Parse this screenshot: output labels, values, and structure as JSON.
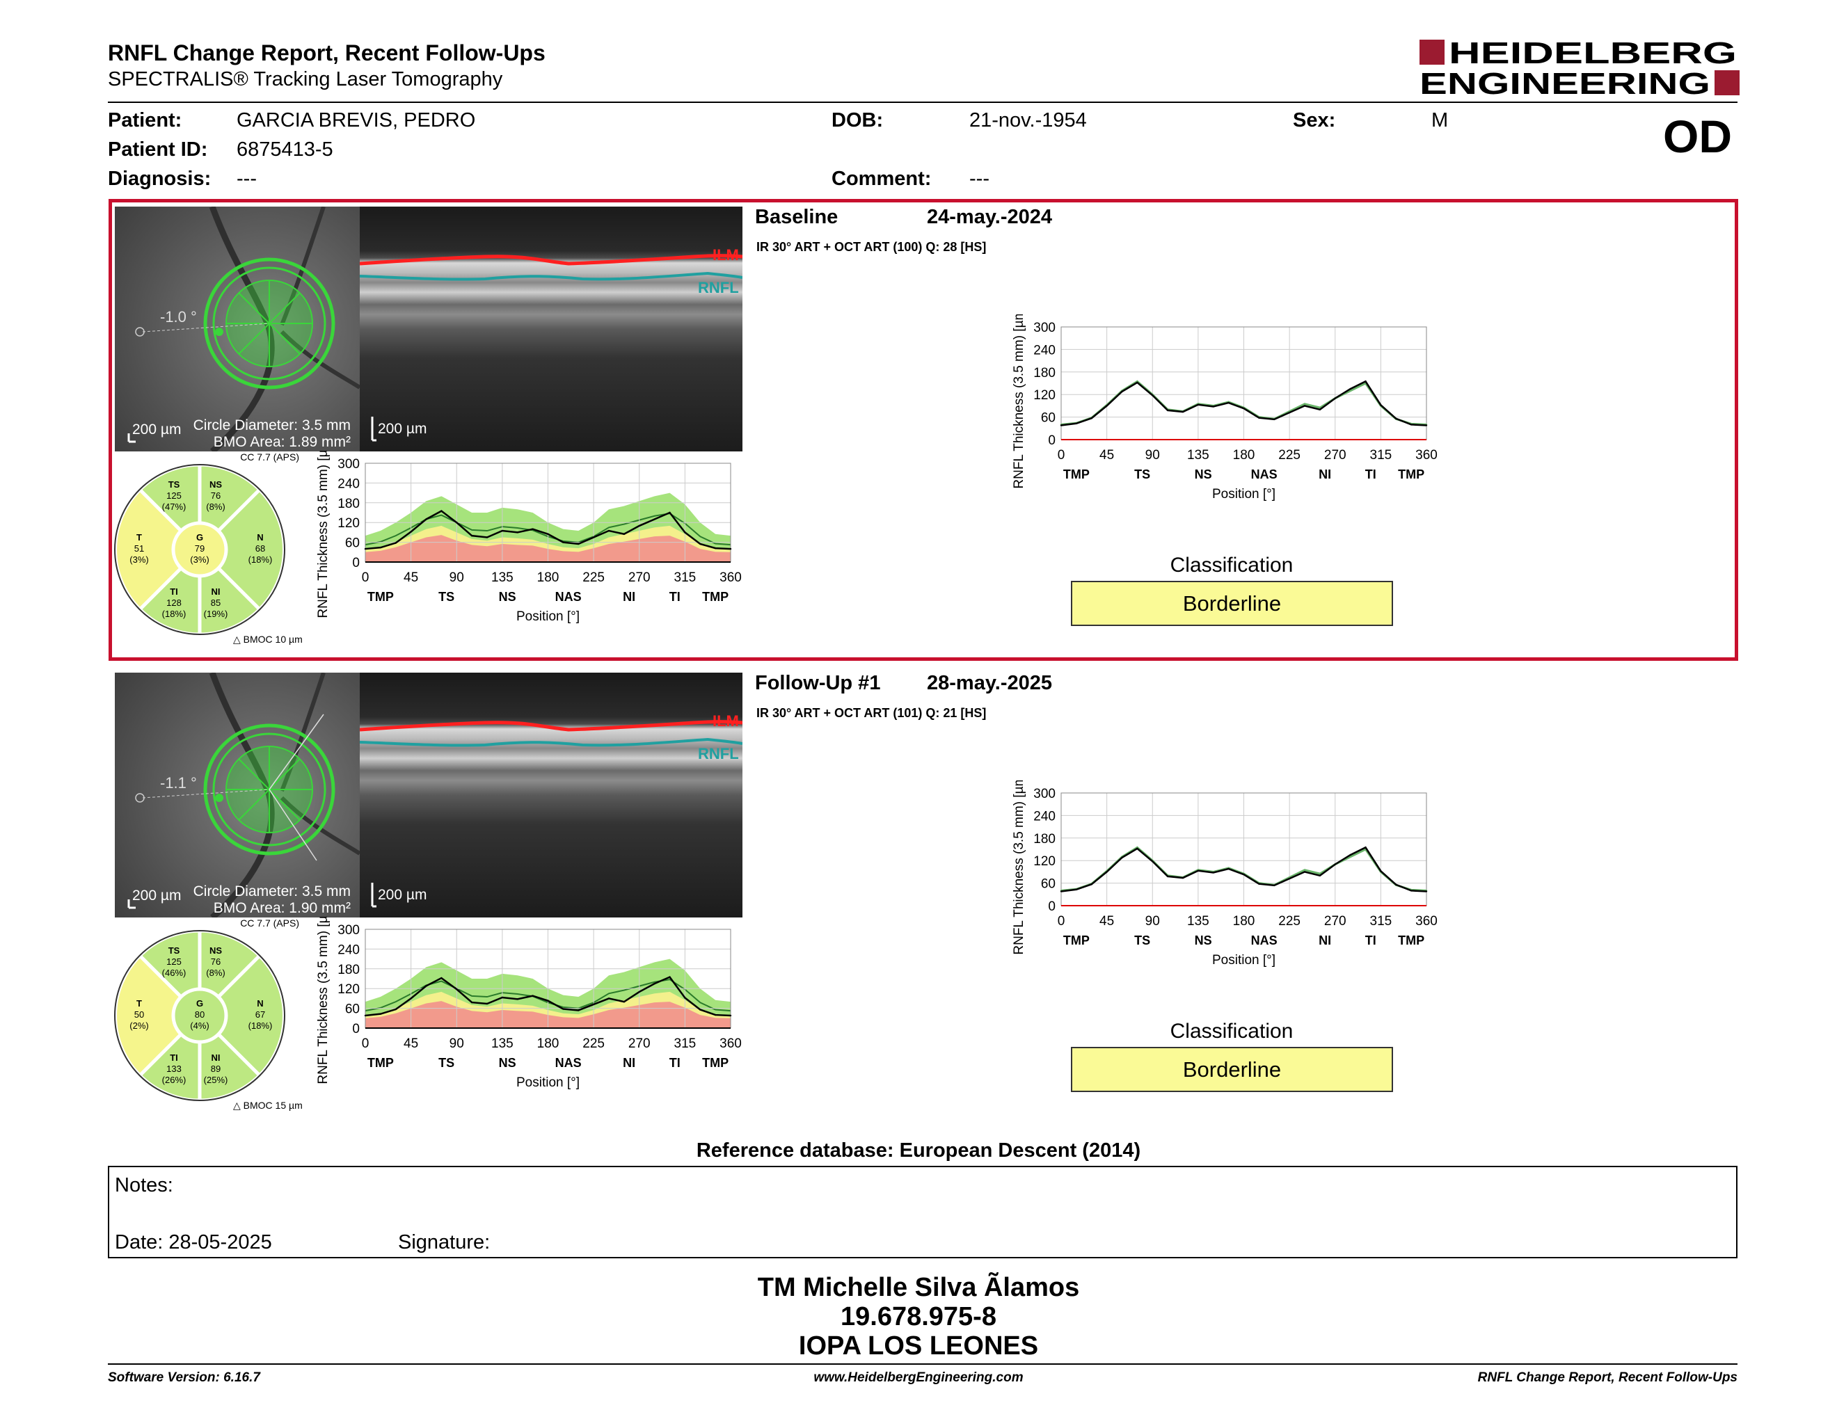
{
  "header": {
    "title": "RNFL Change Report, Recent Follow-Ups",
    "subtitle": "SPECTRALIS® Tracking Laser Tomography",
    "logo_line1": "HEIDELBERG",
    "logo_line2": "ENGINEERING",
    "eye": "OD"
  },
  "patient": {
    "patient_label": "Patient:",
    "patient_value": "GARCIA BREVIS, PEDRO",
    "id_label": "Patient ID:",
    "id_value": "6875413-5",
    "diagnosis_label": "Diagnosis:",
    "diagnosis_value": "---",
    "dob_label": "DOB:",
    "dob_value": "21-nov.-1954",
    "comment_label": "Comment:",
    "comment_value": "---",
    "sex_label": "Sex:",
    "sex_value": "M"
  },
  "exams": [
    {
      "label": "Baseline",
      "date": "24-may.-2024",
      "scan_info": "IR 30° ART + OCT ART (100) Q: 28 [HS]",
      "angle": "-1.0 °",
      "scale": "200 µm",
      "circle": "Circle Diameter: 3.5 mm",
      "bmo": "BMO Area: 1.89 mm²",
      "cc": "CC 7.7 (APS)",
      "bmoc": "BMOC 10 µm",
      "sectors": {
        "TS": {
          "label": "TS",
          "value": "125",
          "pct": "(47%)"
        },
        "NS": {
          "label": "NS",
          "value": "76",
          "pct": "(8%)"
        },
        "T": {
          "label": "T",
          "value": "51",
          "pct": "(3%)"
        },
        "G": {
          "label": "G",
          "value": "79",
          "pct": "(3%)"
        },
        "N": {
          "label": "N",
          "value": "68",
          "pct": "(18%)"
        },
        "TI": {
          "label": "TI",
          "value": "128",
          "pct": "(18%)"
        },
        "NI": {
          "label": "NI",
          "value": "85",
          "pct": "(19%)"
        }
      },
      "classification_label": "Classification",
      "classification": "Borderline"
    },
    {
      "label": "Follow-Up #1",
      "date": "28-may.-2025",
      "scan_info": "IR 30° ART + OCT ART (101) Q: 21 [HS]",
      "angle": "-1.1 °",
      "scale": "200 µm",
      "circle": "Circle Diameter: 3.5 mm",
      "bmo": "BMO Area: 1.90 mm²",
      "cc": "CC 7.7 (APS)",
      "bmoc": "BMOC 15 µm",
      "sectors": {
        "TS": {
          "label": "TS",
          "value": "125",
          "pct": "(46%)"
        },
        "NS": {
          "label": "NS",
          "value": "76",
          "pct": "(8%)"
        },
        "T": {
          "label": "T",
          "value": "50",
          "pct": "(2%)"
        },
        "G": {
          "label": "G",
          "value": "80",
          "pct": "(4%)"
        },
        "N": {
          "label": "N",
          "value": "67",
          "pct": "(18%)"
        },
        "TI": {
          "label": "TI",
          "value": "133",
          "pct": "(26%)"
        },
        "NI": {
          "label": "NI",
          "value": "89",
          "pct": "(25%)"
        }
      },
      "classification_label": "Classification",
      "classification": "Borderline"
    }
  ],
  "bscan_labels": {
    "ilm": "ILM",
    "rnfl": "RNFL",
    "scale": "200 µm"
  },
  "chart_data": [
    {
      "type": "line",
      "title": "",
      "xlabel": "Position [°]",
      "ylabel": "RNFL Thickness (3.5 mm) [µm]",
      "xlim": [
        0,
        360
      ],
      "ylim": [
        0,
        300
      ],
      "grid": true,
      "xticks": [
        "0",
        "45",
        "90",
        "135",
        "180",
        "225",
        "270",
        "315",
        "360"
      ],
      "yticks": [
        "0",
        "60",
        "120",
        "180",
        "240",
        "300"
      ],
      "sector_labels": [
        "TMP",
        "TS",
        "NS",
        "NAS",
        "NI",
        "TI",
        "TMP"
      ],
      "x": [
        0,
        15,
        30,
        45,
        60,
        75,
        90,
        105,
        120,
        135,
        150,
        165,
        180,
        195,
        210,
        225,
        240,
        255,
        270,
        285,
        300,
        315,
        330,
        345,
        360
      ],
      "series": [
        {
          "role": "baseline",
          "values": [
            40,
            44,
            58,
            92,
            130,
            155,
            120,
            80,
            75,
            95,
            90,
            100,
            85,
            60,
            55,
            75,
            95,
            85,
            110,
            130,
            150,
            90,
            55,
            42,
            40
          ]
        }
      ],
      "normal_band": {
        "outer_upper": [
          80,
          95,
          120,
          150,
          185,
          200,
          175,
          150,
          150,
          165,
          160,
          150,
          120,
          100,
          95,
          120,
          160,
          170,
          185,
          200,
          210,
          175,
          120,
          85,
          80
        ],
        "inner_upper": [
          65,
          78,
          100,
          128,
          160,
          175,
          150,
          125,
          125,
          140,
          135,
          125,
          100,
          82,
          78,
          100,
          135,
          145,
          160,
          175,
          185,
          150,
          100,
          70,
          65
        ],
        "borderline_lower": [
          40,
          45,
          60,
          80,
          100,
          110,
          90,
          70,
          65,
          75,
          72,
          68,
          55,
          45,
          42,
          55,
          75,
          85,
          95,
          105,
          110,
          85,
          55,
          42,
          40
        ],
        "outside_lower": [
          30,
          34,
          45,
          60,
          75,
          82,
          65,
          52,
          48,
          55,
          52,
          50,
          40,
          33,
          31,
          42,
          55,
          62,
          70,
          78,
          80,
          62,
          40,
          31,
          30
        ]
      }
    },
    {
      "type": "line",
      "title": "",
      "xlabel": "Position [°]",
      "ylabel": "RNFL Thickness (3.5 mm) [µm]",
      "xlim": [
        0,
        360
      ],
      "ylim": [
        0,
        300
      ],
      "grid": true,
      "xticks": [
        "0",
        "45",
        "90",
        "135",
        "180",
        "225",
        "270",
        "315",
        "360"
      ],
      "yticks": [
        "0",
        "60",
        "120",
        "180",
        "240",
        "300"
      ],
      "sector_labels": [
        "TMP",
        "TS",
        "NS",
        "NAS",
        "NI",
        "TI",
        "TMP"
      ],
      "x": [
        0,
        15,
        30,
        45,
        60,
        75,
        90,
        105,
        120,
        135,
        150,
        165,
        180,
        195,
        210,
        225,
        240,
        255,
        270,
        285,
        300,
        315,
        330,
        345,
        360
      ],
      "series": [
        {
          "role": "baseline",
          "values": [
            40,
            44,
            58,
            92,
            130,
            155,
            120,
            80,
            75,
            95,
            90,
            100,
            85,
            60,
            55,
            75,
            95,
            85,
            110,
            130,
            150,
            90,
            55,
            42,
            40
          ]
        },
        {
          "role": "follow-up",
          "values": [
            38,
            43,
            57,
            90,
            128,
            152,
            118,
            78,
            74,
            93,
            88,
            98,
            83,
            58,
            54,
            72,
            90,
            80,
            110,
            135,
            155,
            92,
            56,
            40,
            38
          ]
        }
      ]
    },
    {
      "type": "line",
      "title": "",
      "xlabel": "Position [°]",
      "ylabel": "RNFL Thickness (3.5 mm) [µm]",
      "xlim": [
        0,
        360
      ],
      "ylim": [
        0,
        300
      ],
      "grid": true,
      "xticks": [
        "0",
        "45",
        "90",
        "135",
        "180",
        "225",
        "270",
        "315",
        "360"
      ],
      "yticks": [
        "0",
        "60",
        "120",
        "180",
        "240",
        "300"
      ],
      "sector_labels": [
        "TMP",
        "TS",
        "NS",
        "NAS",
        "NI",
        "TI",
        "TMP"
      ],
      "x": [
        0,
        15,
        30,
        45,
        60,
        75,
        90,
        105,
        120,
        135,
        150,
        165,
        180,
        195,
        210,
        225,
        240,
        255,
        270,
        285,
        300,
        315,
        330,
        345,
        360
      ],
      "series": [
        {
          "role": "follow-up",
          "values": [
            38,
            43,
            57,
            90,
            128,
            152,
            118,
            78,
            74,
            93,
            88,
            98,
            83,
            58,
            54,
            72,
            90,
            80,
            110,
            135,
            155,
            92,
            56,
            40,
            38
          ]
        }
      ],
      "normal_band": {
        "outer_upper": [
          80,
          95,
          120,
          150,
          185,
          200,
          175,
          150,
          150,
          165,
          160,
          150,
          120,
          100,
          95,
          120,
          160,
          170,
          185,
          200,
          210,
          175,
          120,
          85,
          80
        ],
        "inner_upper": [
          65,
          78,
          100,
          128,
          160,
          175,
          150,
          125,
          125,
          140,
          135,
          125,
          100,
          82,
          78,
          100,
          135,
          145,
          160,
          175,
          185,
          150,
          100,
          70,
          65
        ],
        "borderline_lower": [
          40,
          45,
          60,
          80,
          100,
          110,
          90,
          70,
          65,
          75,
          72,
          68,
          55,
          45,
          42,
          55,
          75,
          85,
          95,
          105,
          110,
          85,
          55,
          42,
          40
        ],
        "outside_lower": [
          30,
          34,
          45,
          60,
          75,
          82,
          65,
          52,
          48,
          55,
          52,
          50,
          40,
          33,
          31,
          42,
          55,
          62,
          70,
          78,
          80,
          62,
          40,
          31,
          30
        ]
      }
    },
    {
      "type": "line",
      "title": "",
      "xlabel": "Position [°]",
      "ylabel": "RNFL Thickness (3.5 mm) [µm]",
      "xlim": [
        0,
        360
      ],
      "ylim": [
        0,
        300
      ],
      "grid": true,
      "xticks": [
        "0",
        "45",
        "90",
        "135",
        "180",
        "225",
        "270",
        "315",
        "360"
      ],
      "yticks": [
        "0",
        "60",
        "120",
        "180",
        "240",
        "300"
      ],
      "sector_labels": [
        "TMP",
        "TS",
        "NS",
        "NAS",
        "NI",
        "TI",
        "TMP"
      ],
      "x": [
        0,
        15,
        30,
        45,
        60,
        75,
        90,
        105,
        120,
        135,
        150,
        165,
        180,
        195,
        210,
        225,
        240,
        255,
        270,
        285,
        300,
        315,
        330,
        345,
        360
      ],
      "series": [
        {
          "role": "baseline",
          "values": [
            40,
            44,
            58,
            92,
            130,
            155,
            120,
            80,
            75,
            95,
            90,
            100,
            85,
            60,
            55,
            75,
            95,
            85,
            110,
            130,
            150,
            90,
            55,
            42,
            40
          ]
        },
        {
          "role": "follow-up",
          "values": [
            38,
            43,
            57,
            90,
            128,
            152,
            118,
            78,
            74,
            93,
            88,
            98,
            83,
            58,
            54,
            72,
            90,
            80,
            110,
            135,
            155,
            92,
            56,
            40,
            38
          ]
        }
      ]
    }
  ],
  "footer_section": {
    "reference": "Reference database: European Descent (2014)",
    "notes_label": "Notes:",
    "date_label": "Date: 28-05-2025",
    "signature_label": "Signature:",
    "signer_name": "TM Michelle Silva Ãlamos",
    "signer_id": "19.678.975-8",
    "signer_org": "IOPA LOS LEONES"
  },
  "footer": {
    "software": "Software Version: 6.16.7",
    "website": "www.HeidelbergEngineering.com",
    "report_name": "RNFL Change Report, Recent Follow-Ups"
  },
  "colors": {
    "brand_red": "#9b1b30",
    "frame_red": "#c8102e",
    "sector_green": "#bde882",
    "sector_yellow": "#f5f58c",
    "classification_yellow": "#fafa96",
    "band_green": "#a6e37c",
    "band_yellow": "#f4f08c",
    "band_red": "#f29a8c"
  }
}
